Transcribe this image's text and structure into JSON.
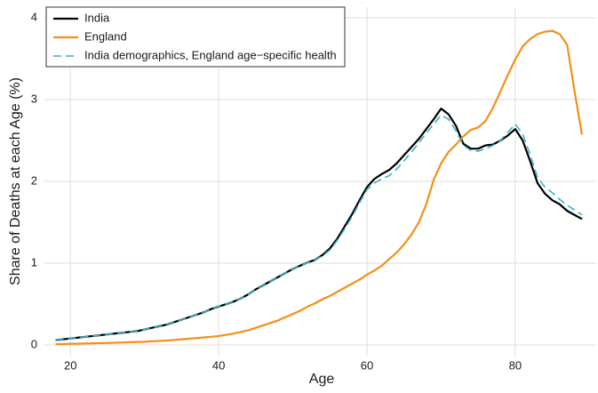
{
  "chart_data": {
    "type": "line",
    "x_label": "Age",
    "y_label": "Share of Deaths at each Age (%)",
    "x": [
      18,
      19,
      20,
      21,
      22,
      23,
      24,
      25,
      26,
      27,
      28,
      29,
      30,
      31,
      32,
      33,
      34,
      35,
      36,
      37,
      38,
      39,
      40,
      41,
      42,
      43,
      44,
      45,
      46,
      47,
      48,
      49,
      50,
      51,
      52,
      53,
      54,
      55,
      56,
      57,
      58,
      59,
      60,
      61,
      62,
      63,
      64,
      65,
      66,
      67,
      68,
      69,
      70,
      71,
      72,
      73,
      74,
      75,
      76,
      77,
      78,
      79,
      80,
      81,
      82,
      83,
      84,
      85,
      86,
      87,
      88,
      89
    ],
    "series": [
      {
        "name": "India",
        "color": "#000000",
        "dashed": false,
        "values": [
          0.06,
          0.07,
          0.08,
          0.09,
          0.1,
          0.11,
          0.12,
          0.13,
          0.14,
          0.15,
          0.16,
          0.17,
          0.19,
          0.21,
          0.23,
          0.25,
          0.28,
          0.31,
          0.34,
          0.37,
          0.4,
          0.44,
          0.47,
          0.5,
          0.53,
          0.57,
          0.62,
          0.68,
          0.73,
          0.78,
          0.83,
          0.88,
          0.93,
          0.97,
          1.01,
          1.04,
          1.1,
          1.18,
          1.3,
          1.45,
          1.6,
          1.77,
          1.93,
          2.03,
          2.09,
          2.14,
          2.22,
          2.32,
          2.42,
          2.52,
          2.64,
          2.76,
          2.89,
          2.82,
          2.68,
          2.46,
          2.4,
          2.4,
          2.44,
          2.45,
          2.5,
          2.56,
          2.64,
          2.5,
          2.25,
          1.98,
          1.85,
          1.77,
          1.72,
          1.64,
          1.59,
          1.54
        ]
      },
      {
        "name": "England",
        "color": "#f39019",
        "dashed": false,
        "values": [
          0.01,
          0.012,
          0.015,
          0.017,
          0.019,
          0.021,
          0.023,
          0.025,
          0.028,
          0.031,
          0.034,
          0.037,
          0.04,
          0.045,
          0.05,
          0.055,
          0.062,
          0.07,
          0.077,
          0.085,
          0.093,
          0.1,
          0.11,
          0.125,
          0.14,
          0.16,
          0.18,
          0.21,
          0.24,
          0.27,
          0.3,
          0.34,
          0.38,
          0.42,
          0.47,
          0.51,
          0.56,
          0.6,
          0.65,
          0.7,
          0.75,
          0.8,
          0.86,
          0.91,
          0.97,
          1.05,
          1.13,
          1.23,
          1.35,
          1.5,
          1.72,
          2.02,
          2.22,
          2.36,
          2.45,
          2.55,
          2.63,
          2.66,
          2.74,
          2.9,
          3.1,
          3.3,
          3.49,
          3.65,
          3.74,
          3.8,
          3.83,
          3.84,
          3.8,
          3.67,
          3.1,
          2.57
        ]
      },
      {
        "name": "India demographics, England age−specific health",
        "color": "#3bb0c9",
        "dashed": true,
        "values": [
          0.06,
          0.07,
          0.08,
          0.09,
          0.1,
          0.11,
          0.12,
          0.13,
          0.14,
          0.15,
          0.16,
          0.17,
          0.19,
          0.21,
          0.23,
          0.25,
          0.28,
          0.31,
          0.34,
          0.37,
          0.4,
          0.44,
          0.47,
          0.5,
          0.53,
          0.57,
          0.62,
          0.68,
          0.73,
          0.78,
          0.83,
          0.88,
          0.93,
          0.97,
          1.01,
          1.04,
          1.09,
          1.16,
          1.28,
          1.42,
          1.57,
          1.74,
          1.9,
          1.98,
          2.03,
          2.07,
          2.15,
          2.25,
          2.36,
          2.47,
          2.59,
          2.7,
          2.81,
          2.76,
          2.62,
          2.44,
          2.38,
          2.37,
          2.4,
          2.44,
          2.5,
          2.6,
          2.7,
          2.58,
          2.33,
          2.05,
          1.93,
          1.86,
          1.78,
          1.71,
          1.65,
          1.59
        ]
      }
    ],
    "xlim": [
      16.5,
      90.8
    ],
    "ylim": [
      -0.13,
      4.13
    ],
    "xticks": [
      20,
      40,
      60,
      80
    ],
    "yticks": [
      0,
      1,
      2,
      3,
      4
    ],
    "grid": true,
    "legend": "upper left"
  }
}
